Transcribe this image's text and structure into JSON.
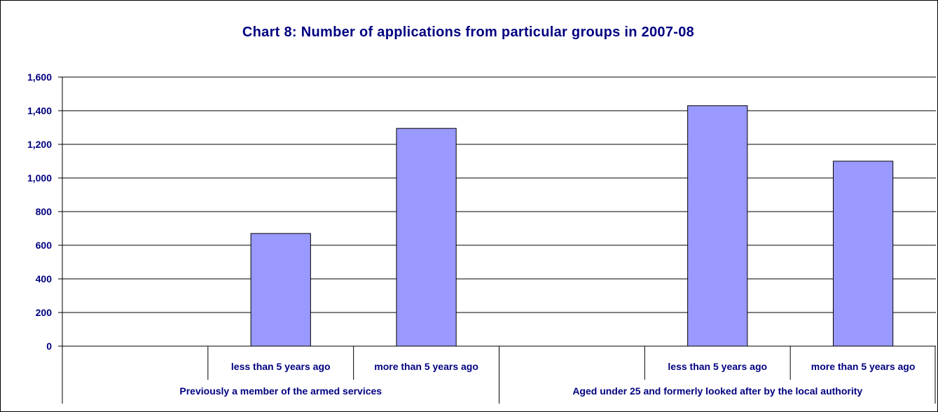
{
  "chart_data": {
    "type": "bar",
    "title": "Chart 8:   Number of applications from particular groups in 2007-08",
    "groups": [
      {
        "label": "Previously a member of the armed services",
        "categories": [
          "",
          "less than 5 years ago",
          "more than 5 years ago"
        ],
        "values": [
          null,
          670,
          1295
        ]
      },
      {
        "label": "Aged under 25 and formerly looked after by the local authority",
        "categories": [
          "",
          "less than 5 years ago",
          "more than 5 years ago"
        ],
        "values": [
          null,
          1430,
          1100
        ]
      }
    ],
    "ylim": [
      0,
      1600
    ],
    "yticks": [
      "0",
      "200",
      "400",
      "600",
      "800",
      "1,000",
      "1,200",
      "1,400",
      "1,600"
    ],
    "grid": true,
    "legend": "none",
    "bar_color": "#9999ff",
    "text_color": "#000080"
  }
}
